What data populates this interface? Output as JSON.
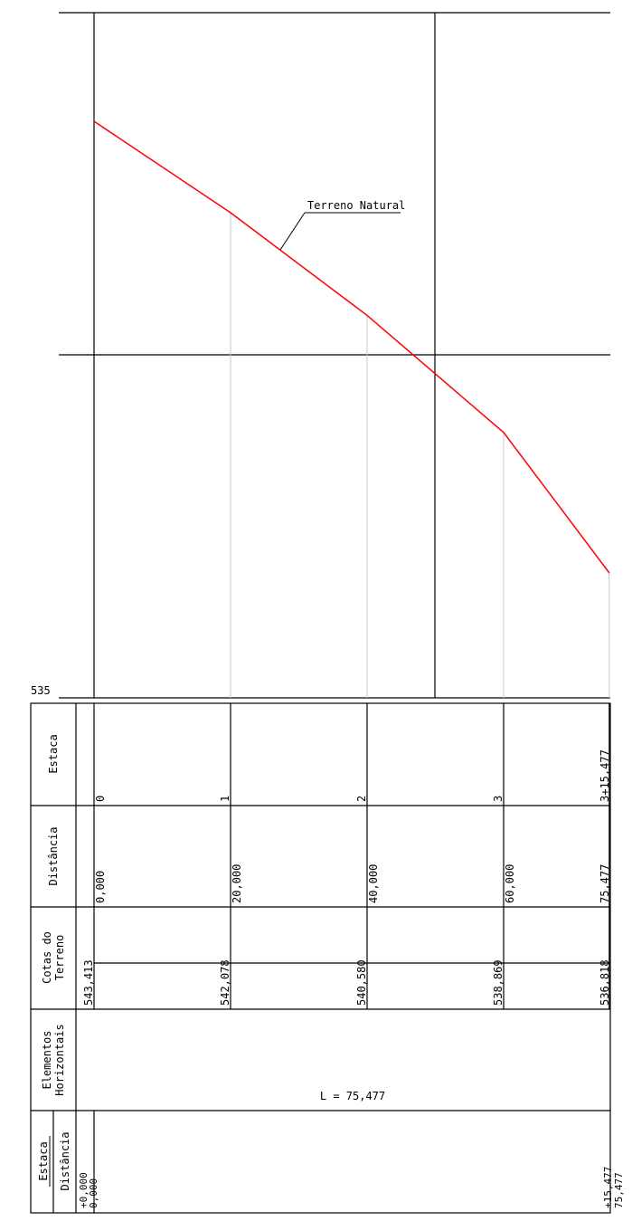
{
  "profile": {
    "datum_label": "535",
    "terrain_label": "Terreno Natural",
    "terrain_color": "#ff0000",
    "terrain_points": [
      {
        "distance": 0,
        "elevation": 543.413
      },
      {
        "distance": 20,
        "elevation": 542.078
      },
      {
        "distance": 40,
        "elevation": 540.58
      },
      {
        "distance": 60,
        "elevation": 538.869
      },
      {
        "distance": 75.477,
        "elevation": 536.818
      }
    ]
  },
  "table": {
    "headers": {
      "estaca": "Estaca",
      "distancia": "Distância",
      "cotas_line1": "Cotas do",
      "cotas_line2": "Terreno",
      "elementos_line1": "Elementos",
      "elementos_line2": "Horizontais",
      "bottom_estaca": "Estaca",
      "bottom_distancia": "Distância"
    },
    "columns": [
      {
        "estaca": "0",
        "distancia": "0,000",
        "cota": "543,413"
      },
      {
        "estaca": "1",
        "distancia": "20,000",
        "cota": "542,078"
      },
      {
        "estaca": "2",
        "distancia": "40,000",
        "cota": "540,580"
      },
      {
        "estaca": "3",
        "distancia": "60,000",
        "cota": "538,869"
      },
      {
        "estaca": "3+15,477",
        "distancia": "75,477",
        "cota": "536,818"
      }
    ],
    "horizontal_element_length": "L = 75,477",
    "start_stake": "+0,000",
    "start_distance": "0,000",
    "end_stake": "+15,477",
    "end_distance": "75,477"
  }
}
